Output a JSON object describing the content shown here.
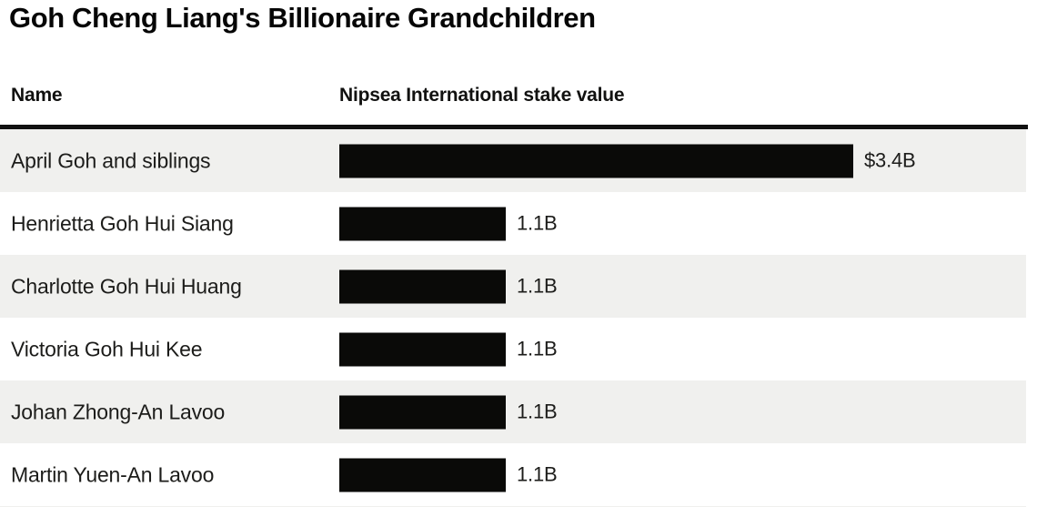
{
  "title": "Goh Cheng Liang's Billionaire Grandchildren",
  "table": {
    "name_header": "Name",
    "value_header": "Nipsea International stake value"
  },
  "rows": [
    {
      "name": "April Goh and siblings",
      "value": 3.4,
      "value_label": "$3.4B"
    },
    {
      "name": "Henrietta Goh Hui Siang",
      "value": 1.1,
      "value_label": "1.1B"
    },
    {
      "name": "Charlotte Goh Hui Huang",
      "value": 1.1,
      "value_label": "1.1B"
    },
    {
      "name": "Victoria Goh Hui Kee",
      "value": 1.1,
      "value_label": "1.1B"
    },
    {
      "name": "Johan Zhong-An Lavoo",
      "value": 1.1,
      "value_label": "1.1B"
    },
    {
      "name": "Martin Yuen-An Lavoo",
      "value": 1.1,
      "value_label": "1.1B"
    }
  ],
  "chart_data": {
    "type": "bar",
    "orientation": "horizontal",
    "title": "Goh Cheng Liang's Billionaire Grandchildren",
    "categories": [
      "April Goh and siblings",
      "Henrietta Goh Hui Siang",
      "Charlotte Goh Hui Huang",
      "Victoria Goh Hui Kee",
      "Johan Zhong-An Lavoo",
      "Martin Yuen-An Lavoo"
    ],
    "values": [
      3.4,
      1.1,
      1.1,
      1.1,
      1.1,
      1.1
    ],
    "value_labels": [
      "$3.4B",
      "1.1B",
      "1.1B",
      "1.1B",
      "1.1B",
      "1.1B"
    ],
    "unit": "billions USD",
    "xlabel": "Nipsea International stake value",
    "ylabel": "Name",
    "xlim": [
      0,
      3.4
    ],
    "grid": false,
    "legend": "none",
    "bar_color": "#0a0a08",
    "row_stripe_color": "#f0f0ee"
  },
  "colors": {
    "background": "#ffffff",
    "bar": "#0a0a08",
    "row_stripe": "#f0f0ee",
    "header_rule": "#111111",
    "text": "#1c1c1a"
  }
}
